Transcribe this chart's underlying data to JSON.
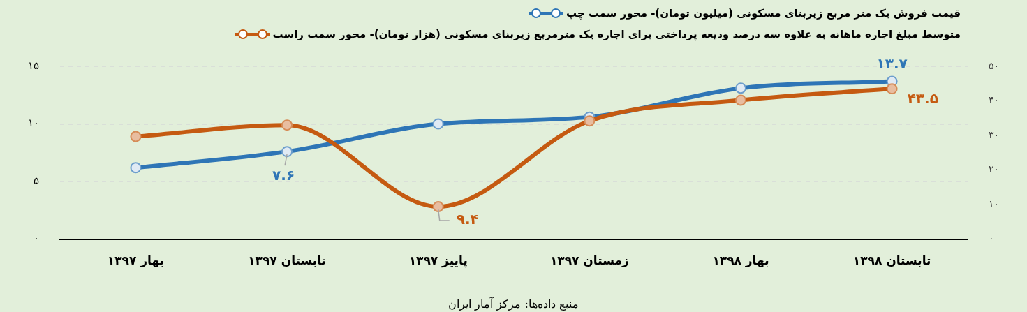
{
  "chart_data": {
    "type": "line",
    "categories": [
      "بهار ۱۳۹۷",
      "تابستان ۱۳۹۷",
      "پاییز ۱۳۹۷",
      "زمستان ۱۳۹۷",
      "بهار ۱۳۹۸",
      "تابستان ۱۳۹۸"
    ],
    "series": [
      {
        "name": "قیمت فروش یک متر مربع زیربنای مسکونی (میلیون تومان)- محور سمت چپ",
        "color": "#2e75b6",
        "values": [
          6.2,
          7.6,
          10.0,
          10.6,
          13.1,
          13.7
        ],
        "value_labels": [
          null,
          "۷.۶",
          null,
          null,
          null,
          "۱۳.۷"
        ]
      },
      {
        "name": "متوسط مبلغ اجاره ماهانه به علاوه سه درصد ودیعه پرداختی برای اجاره یک مترمربع زیربنای مسکونی (هزار تومان)- محور سمت راست",
        "color": "#c55a11",
        "axis": "y2",
        "values": [
          29.7,
          33.0,
          9.4,
          34.2,
          40.2,
          43.5
        ],
        "value_labels": [
          null,
          null,
          "۹.۴",
          null,
          null,
          "۴۳.۵"
        ]
      }
    ],
    "ylim": [
      0,
      15
    ],
    "yticks": [
      {
        "value": 0,
        "label": "۰"
      },
      {
        "value": 5,
        "label": "۵"
      },
      {
        "value": 10,
        "label": "۱۰"
      },
      {
        "value": 15,
        "label": "۱۵"
      }
    ],
    "y2lim": [
      0,
      50
    ],
    "y2ticks": [
      {
        "value": 0,
        "label": "۰"
      },
      {
        "value": 10,
        "label": "۱۰"
      },
      {
        "value": 20,
        "label": "۲۰"
      },
      {
        "value": 30,
        "label": "۳۰"
      },
      {
        "value": 40,
        "label": "۴۰"
      },
      {
        "value": 50,
        "label": "۵۰"
      }
    ],
    "grid": "y",
    "legend": "top",
    "marker": "circle",
    "line_style": "solid",
    "annotations": [
      "منبع داده‌ها: مرکز آمار ایران"
    ]
  }
}
